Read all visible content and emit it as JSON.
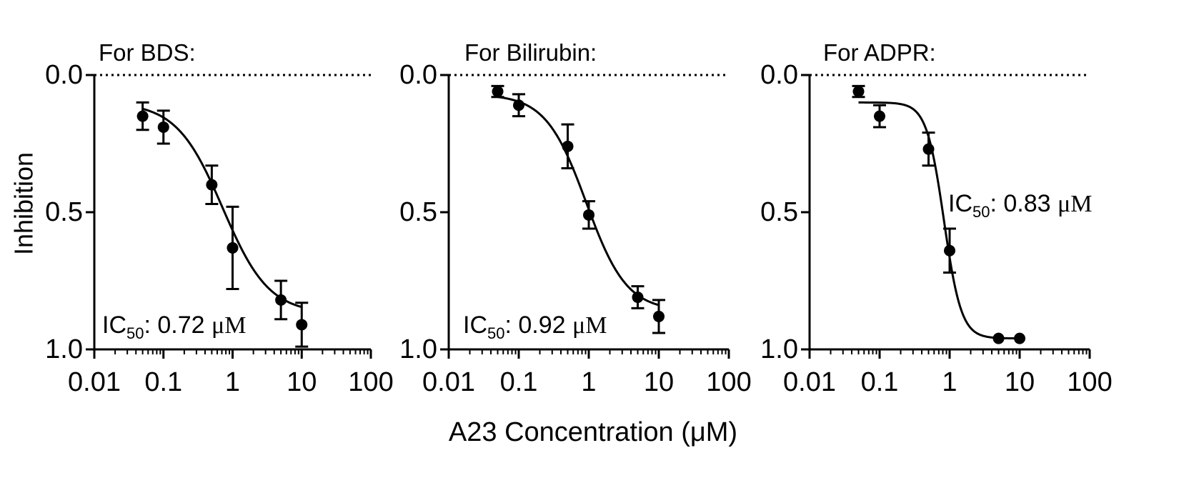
{
  "chart_data": [
    {
      "type": "scatter",
      "title": "For BDS:",
      "ylabel": "Inhibition",
      "xscale": "log",
      "xlim": [
        0.01,
        100
      ],
      "ylim": [
        1.0,
        0.0
      ],
      "y_inverted": true,
      "xticks": [
        "0.01",
        "0.1",
        "1",
        "10",
        "100"
      ],
      "yticks": [
        "0.0",
        "0.5",
        "1.0"
      ],
      "reference_line": {
        "y": 0.0,
        "style": "dotted"
      },
      "points": [
        {
          "x": 0.05,
          "y": 0.15,
          "err": 0.05
        },
        {
          "x": 0.1,
          "y": 0.19,
          "err": 0.06
        },
        {
          "x": 0.5,
          "y": 0.4,
          "err": 0.07
        },
        {
          "x": 1,
          "y": 0.63,
          "err": 0.15
        },
        {
          "x": 5,
          "y": 0.82,
          "err": 0.07
        },
        {
          "x": 10,
          "y": 0.91,
          "err": 0.08
        }
      ],
      "fit": {
        "bottom": 0.1,
        "top": 0.87,
        "ic50": 0.72,
        "hill": 1.3
      },
      "annotation": {
        "prefix": "IC",
        "sub": "50",
        "value": ": 0.72 ",
        "unit": "μM"
      }
    },
    {
      "type": "scatter",
      "title": "For Bilirubin:",
      "xscale": "log",
      "xlim": [
        0.01,
        100
      ],
      "ylim": [
        1.0,
        0.0
      ],
      "y_inverted": true,
      "xticks": [
        "0.01",
        "0.1",
        "1",
        "10",
        "100"
      ],
      "yticks": [
        "0.0",
        "0.5",
        "1.0"
      ],
      "reference_line": {
        "y": 0.0,
        "style": "dotted"
      },
      "points": [
        {
          "x": 0.05,
          "y": 0.06,
          "err": 0.02
        },
        {
          "x": 0.1,
          "y": 0.11,
          "err": 0.04
        },
        {
          "x": 0.5,
          "y": 0.26,
          "err": 0.08
        },
        {
          "x": 1,
          "y": 0.51,
          "err": 0.05
        },
        {
          "x": 5,
          "y": 0.81,
          "err": 0.04
        },
        {
          "x": 10,
          "y": 0.88,
          "err": 0.06
        }
      ],
      "fit": {
        "bottom": 0.07,
        "top": 0.86,
        "ic50": 0.92,
        "hill": 1.5
      },
      "annotation": {
        "prefix": "IC",
        "sub": "50",
        "value": ": 0.92 ",
        "unit": "μM"
      }
    },
    {
      "type": "scatter",
      "title": "For ADPR:",
      "xscale": "log",
      "xlim": [
        0.01,
        100
      ],
      "ylim": [
        1.0,
        0.0
      ],
      "y_inverted": true,
      "xticks": [
        "0.01",
        "0.1",
        "1",
        "10",
        "100"
      ],
      "yticks": [
        "0.0",
        "0.5",
        "1.0"
      ],
      "reference_line": {
        "y": 0.0,
        "style": "dotted"
      },
      "points": [
        {
          "x": 0.05,
          "y": 0.06,
          "err": 0.02
        },
        {
          "x": 0.1,
          "y": 0.15,
          "err": 0.04
        },
        {
          "x": 0.5,
          "y": 0.27,
          "err": 0.06
        },
        {
          "x": 1,
          "y": 0.64,
          "err": 0.08
        },
        {
          "x": 5,
          "y": 0.96,
          "err": 0.0
        },
        {
          "x": 10,
          "y": 0.96,
          "err": 0.0
        }
      ],
      "fit": {
        "bottom": 0.1,
        "top": 0.96,
        "ic50": 0.83,
        "hill": 3.5
      },
      "annotation": {
        "prefix": "IC",
        "sub": "50",
        "value": ": 0.83 ",
        "unit": "μM"
      }
    }
  ],
  "shared_xlabel": "A23 Concentration (μM)"
}
